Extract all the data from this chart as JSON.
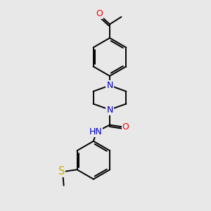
{
  "background_color": "#e8e8e8",
  "fig_size": [
    3.0,
    3.0
  ],
  "dpi": 100,
  "atom_colors": {
    "C": "#000000",
    "N": "#0000cc",
    "O": "#ff0000",
    "S": "#ccaa00",
    "H": "#000000"
  },
  "bond_color": "#000000",
  "bond_width": 1.4,
  "font_size": 8.5,
  "bg": "#e8e8e8"
}
